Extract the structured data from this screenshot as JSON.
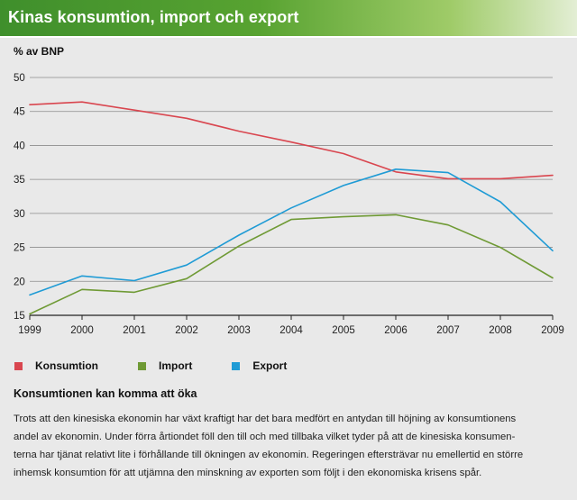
{
  "header": {
    "title": "Kinas konsumtion, import och export"
  },
  "chart_data": {
    "type": "line",
    "title": "Kinas konsumtion, import och export",
    "ylabel": "% av BNP",
    "xlabel": "",
    "x": [
      "1999",
      "2000",
      "2001",
      "2002",
      "2003",
      "2004",
      "2005",
      "2006",
      "2007",
      "2008",
      "2009"
    ],
    "yticks": [
      15,
      20,
      25,
      30,
      35,
      40,
      45,
      50
    ],
    "ylim": [
      15,
      50
    ],
    "grid": true,
    "legend_position": "bottom-left",
    "series": [
      {
        "name": "Konsumtion",
        "color": "#d9464f",
        "values": [
          46.0,
          46.4,
          45.2,
          44.0,
          42.1,
          40.5,
          38.8,
          36.1,
          35.1,
          35.1,
          35.6
        ]
      },
      {
        "name": "Import",
        "color": "#6f9a35",
        "values": [
          15.2,
          18.8,
          18.4,
          20.4,
          25.2,
          29.1,
          29.5,
          29.8,
          28.3,
          25.0,
          20.5
        ]
      },
      {
        "name": "Export",
        "color": "#1f9bd5",
        "values": [
          18.0,
          20.8,
          20.1,
          22.4,
          26.8,
          30.8,
          34.1,
          36.5,
          36.0,
          31.7,
          24.5
        ]
      }
    ]
  },
  "legend": {
    "items": [
      {
        "label": "Konsumtion",
        "color": "#d9464f"
      },
      {
        "label": "Import",
        "color": "#6f9a35"
      },
      {
        "label": "Export",
        "color": "#1f9bd5"
      }
    ]
  },
  "article": {
    "heading": "Konsumtionen kan komma att öka",
    "lines": [
      "Trots att den kinesiska ekonomin har växt kraftigt har det bara medfört en antydan till höjning av konsumtionens",
      "andel av ekonomin. Under förra årtiondet föll den till och med tillbaka vilket tyder på att de kinesiska konsumen-",
      "terna har tjänat relativt lite i förhållande till ökningen av ekonomin. Regeringen eftersträvar nu emellertid en större",
      "inhemsk konsumtion för att utjämna den minskning av exporten som följt i den ekonomiska krisens spår."
    ]
  }
}
